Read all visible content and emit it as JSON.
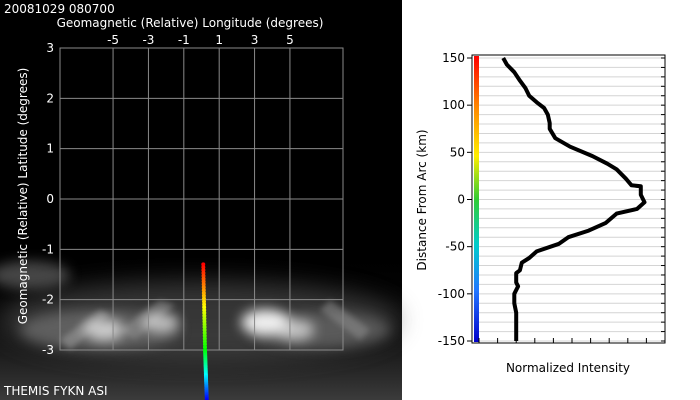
{
  "left_panel": {
    "timestamp": "20081029 080700",
    "footer": "THEMIS FYKN ASI"
  },
  "colors": {
    "background_left": "#000000",
    "grid": "#8a8a8a",
    "text_left": "#ffffff",
    "text_right": "#000000",
    "profile_line": "#000000"
  },
  "chart_data": [
    {
      "type": "heatmap",
      "title": "",
      "xlabel": "Geomagnetic (Relative) Longitude (degrees)",
      "ylabel": "Geomagnetic (Relative) Latitude (degrees)",
      "xlim": [
        -8,
        8
      ],
      "ylim": [
        -3,
        3
      ],
      "x_ticks": [
        "-5",
        "-3",
        "-1",
        "1",
        "3",
        "5"
      ],
      "x_tick_values": [
        -5,
        -3,
        -1,
        1,
        3,
        5
      ],
      "y_ticks": [
        "-3",
        "-2",
        "-1",
        "0",
        "1",
        "2",
        "3"
      ],
      "y_tick_values": [
        -3,
        -2,
        -1,
        0,
        1,
        2,
        3
      ],
      "grid": true,
      "arc_track": {
        "description_color_scale": "rainbow",
        "points": [
          [
            0.1,
            -1.3
          ],
          [
            0.2,
            -3.0
          ],
          [
            0.3,
            -4.0
          ]
        ]
      },
      "bright_spots": [
        {
          "lon": 3.6,
          "lat": -2.45,
          "intensity": 1.0
        },
        {
          "lon": -2.3,
          "lat": -2.45,
          "intensity": 0.45
        },
        {
          "lon": -5.5,
          "lat": -2.6,
          "intensity": 0.6
        },
        {
          "lon": 5.3,
          "lat": -2.6,
          "intensity": 0.5
        }
      ]
    },
    {
      "type": "line",
      "title": "",
      "xlabel": "Normalized Intensity",
      "ylabel": "Distance From Arc (km)",
      "ylim": [
        -150,
        150
      ],
      "xlim": [
        0,
        1
      ],
      "y_ticks": [
        "150",
        "100",
        "50",
        "0",
        "-50",
        "-100",
        "-150"
      ],
      "y_tick_values": [
        150,
        100,
        50,
        0,
        -50,
        -100,
        -150
      ],
      "grid": true,
      "series": [
        {
          "points": [
            [
              0.13,
              150
            ],
            [
              0.15,
              143
            ],
            [
              0.19,
              135
            ],
            [
              0.22,
              126
            ],
            [
              0.25,
              118
            ],
            [
              0.27,
              110
            ],
            [
              0.31,
              103
            ],
            [
              0.35,
              97
            ],
            [
              0.37,
              90
            ],
            [
              0.38,
              81
            ],
            [
              0.38,
              75
            ],
            [
              0.41,
              65
            ],
            [
              0.49,
              56
            ],
            [
              0.61,
              46
            ],
            [
              0.69,
              38
            ],
            [
              0.74,
              32
            ],
            [
              0.79,
              22
            ],
            [
              0.82,
              15
            ],
            [
              0.87,
              14
            ],
            [
              0.87,
              5
            ],
            [
              0.89,
              -3
            ],
            [
              0.85,
              -10
            ],
            [
              0.74,
              -15
            ],
            [
              0.68,
              -25
            ],
            [
              0.59,
              -33
            ],
            [
              0.48,
              -40
            ],
            [
              0.43,
              -47
            ],
            [
              0.31,
              -55
            ],
            [
              0.27,
              -62
            ],
            [
              0.23,
              -67
            ],
            [
              0.22,
              -75
            ],
            [
              0.2,
              -78
            ],
            [
              0.2,
              -88
            ],
            [
              0.21,
              -92
            ],
            [
              0.19,
              -100
            ],
            [
              0.19,
              -110
            ],
            [
              0.2,
              -120
            ],
            [
              0.2,
              -130
            ],
            [
              0.2,
              -142
            ],
            [
              0.2,
              -150
            ]
          ]
        }
      ],
      "color_bar": {
        "scale": "rainbow",
        "from": "blue",
        "to": "red"
      }
    }
  ]
}
